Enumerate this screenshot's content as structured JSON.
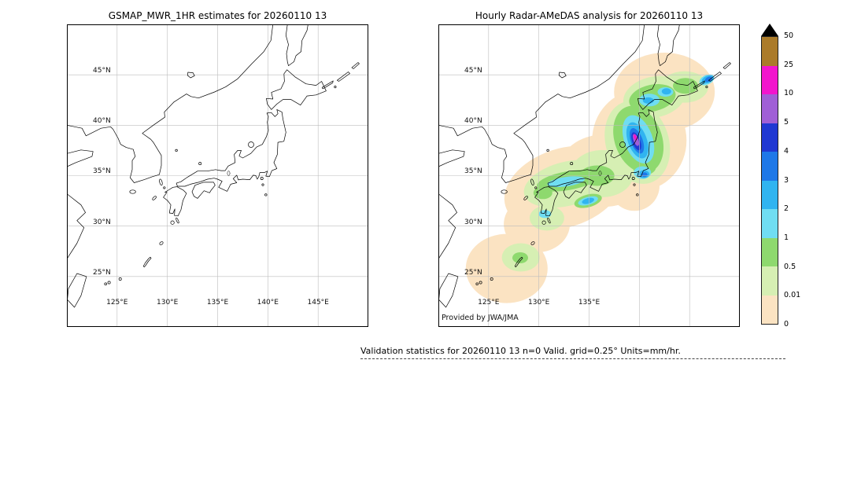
{
  "left_map": {
    "title": "GSMAP_MWR_1HR estimates for 20260110 13",
    "lat_labels": [
      "45°N",
      "40°N",
      "35°N",
      "30°N",
      "25°N"
    ],
    "lon_labels": [
      "125°E",
      "130°E",
      "135°E",
      "140°E",
      "145°E"
    ]
  },
  "right_map": {
    "title": "Hourly Radar-AMeDAS analysis for 20260110 13",
    "lat_labels": [
      "45°N",
      "40°N",
      "35°N",
      "30°N",
      "25°N"
    ],
    "lon_labels": [
      "125°E",
      "130°E",
      "135°E"
    ],
    "attribution": "Provided by JWA/JMA"
  },
  "colorbar": {
    "tick_labels_top_to_bottom": [
      "50",
      "25",
      "10",
      "5",
      "4",
      "3",
      "2",
      "1",
      "0.5",
      "0.01",
      "0"
    ],
    "segment_colors_top_to_bottom": [
      "#ab7b2a",
      "#f215cd",
      "#a05fd6",
      "#2038d2",
      "#1e78e8",
      "#30b4f0",
      "#70ddf2",
      "#8ed96e",
      "#d6efb3",
      "#fbe3c2"
    ],
    "over_arrow_color": "#000000"
  },
  "footer": "Validation statistics for 20260110 13  n=0 Valid. grid=0.25° Units=mm/hr."
}
